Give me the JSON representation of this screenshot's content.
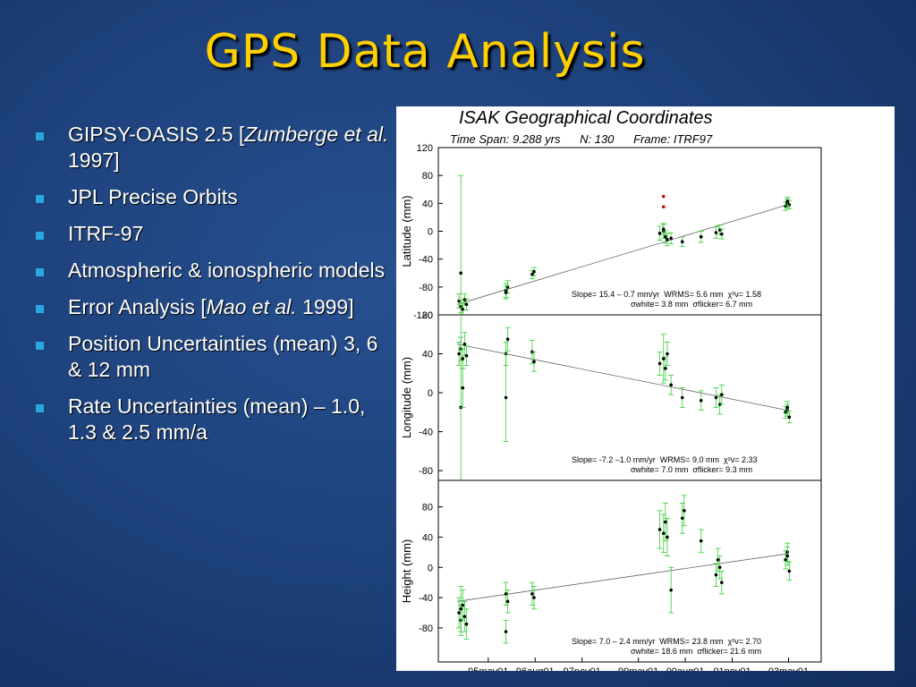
{
  "title": "GPS Data Analysis",
  "bullets": [
    [
      {
        "text": "GIPSY-OASIS 2.5 ["
      },
      {
        "text": "Zumberge et al.",
        "italic": true
      },
      {
        "text": " 1997]"
      }
    ],
    [
      {
        "text": "JPL Precise Orbits"
      }
    ],
    [
      {
        "text": "ITRF-97"
      }
    ],
    [
      {
        "text": "Atmospheric & ionospheric models"
      }
    ],
    [
      {
        "text": "Error Analysis ["
      },
      {
        "text": "Mao et al.",
        "italic": true
      },
      {
        "text": " 1999]"
      }
    ],
    [
      {
        "text": "Position Uncertainties (mean) 3, 6 & 12 mm"
      }
    ],
    [
      {
        "text": "Rate Uncertainties (mean) – 1.0, 1.3 & 2.5 mm/a"
      }
    ]
  ],
  "chart_data": [
    {
      "type": "scatter",
      "title": "ISAK Geographical Coordinates",
      "subtitle": "Time Span: 9.288 yrs      N: 130      Frame: ITRF97",
      "ylabel": "Latitude (mm)",
      "xlim": [
        1994.0,
        2004.2
      ],
      "ylim": [
        -120,
        120
      ],
      "yticks": [
        -120,
        -80,
        -40,
        0,
        40,
        80,
        120
      ],
      "x": [
        1994.55,
        1994.6,
        1994.65,
        1994.7,
        1994.75,
        1994.6,
        1995.8,
        1995.85,
        1995.8,
        1996.5,
        1996.55,
        1999.9,
        2000.0,
        2000.05,
        2000.1,
        2000.0,
        2000.2,
        2000.5,
        2001.0,
        2001.4,
        2001.5,
        2001.55,
        2003.25,
        2003.3,
        2003.35,
        2003.3
      ],
      "values": [
        -100,
        -108,
        -112,
        -98,
        -105,
        -60,
        -85,
        -80,
        -88,
        -62,
        -58,
        -3,
        0,
        -8,
        -12,
        3,
        -10,
        -15,
        -8,
        -2,
        2,
        -4,
        36,
        40,
        38,
        43
      ],
      "errors": [
        10,
        9,
        9,
        8,
        8,
        140,
        10,
        9,
        9,
        6,
        6,
        10,
        10,
        9,
        9,
        8,
        8,
        7,
        8,
        8,
        7,
        7,
        6,
        6,
        6,
        6
      ],
      "color": "#33cc33",
      "outliers": {
        "x": [
          2000.0,
          2000.0
        ],
        "values": [
          50,
          35
        ],
        "color": "#cc0000"
      },
      "trend": {
        "x": [
          1994.5,
          2003.3
        ],
        "values": [
          -105,
          38
        ]
      },
      "annotations": [
        "Slope= 15.4 – 0.7 mm/yr  WRMS= 5.6 mm  χ²ν= 1.58",
        "σwhite= 3.8 mm  σflicker= 6.7 mm"
      ]
    },
    {
      "type": "scatter",
      "ylabel": "Longitude (mm)",
      "xlim": [
        1994.0,
        2004.2
      ],
      "ylim": [
        -90,
        80
      ],
      "yticks": [
        -80,
        -40,
        0,
        40,
        80
      ],
      "x": [
        1994.55,
        1994.6,
        1994.65,
        1994.7,
        1994.75,
        1994.6,
        1994.65,
        1995.8,
        1995.85,
        1995.8,
        1996.5,
        1996.55,
        1999.9,
        2000.0,
        2000.05,
        2000.1,
        2000.2,
        2000.5,
        2001.0,
        2001.4,
        2001.5,
        2001.55,
        2003.25,
        2003.3,
        2003.35,
        2003.3
      ],
      "values": [
        40,
        45,
        35,
        50,
        38,
        -15,
        5,
        40,
        55,
        -5,
        42,
        32,
        30,
        35,
        25,
        40,
        8,
        -5,
        -8,
        -5,
        -12,
        -2,
        -20,
        -18,
        -25,
        -15
      ],
      "errors": [
        12,
        12,
        10,
        12,
        10,
        100,
        20,
        12,
        12,
        45,
        12,
        10,
        12,
        25,
        12,
        12,
        10,
        10,
        10,
        10,
        10,
        10,
        6,
        6,
        6,
        6
      ],
      "color": "#33cc33",
      "trend": {
        "x": [
          1994.5,
          2003.3
        ],
        "values": [
          50,
          -18
        ]
      },
      "annotations": [
        "Slope= -7.2 –1.0 mm/yr  WRMS= 9.0 mm  χ²ν= 2.33",
        "σwhite= 7.0 mm  σflicker= 9.3 mm"
      ]
    },
    {
      "type": "scatter",
      "ylabel": "Height (mm)",
      "xlim": [
        1994.0,
        2004.2
      ],
      "ylim": [
        -125,
        115
      ],
      "yticks": [
        -80,
        -40,
        0,
        40,
        80
      ],
      "xticks": [
        {
          "value": 1995.33,
          "label": "95may01"
        },
        {
          "value": 1996.58,
          "label": "96aug01"
        },
        {
          "value": 1997.83,
          "label": "97nov01"
        },
        {
          "value": 1999.33,
          "label": "99may01"
        },
        {
          "value": 2000.58,
          "label": "00aug01"
        },
        {
          "value": 2001.83,
          "label": "01nov01"
        },
        {
          "value": 2003.33,
          "label": "03may01"
        }
      ],
      "x": [
        1994.55,
        1994.6,
        1994.65,
        1994.7,
        1994.75,
        1994.6,
        1995.8,
        1995.85,
        1995.8,
        1996.5,
        1996.55,
        1999.9,
        2000.0,
        2000.05,
        2000.1,
        2000.2,
        2000.5,
        2000.55,
        2001.0,
        2001.4,
        2001.5,
        2001.55,
        2001.45,
        2003.25,
        2003.3,
        2003.35,
        2003.3
      ],
      "values": [
        -60,
        -70,
        -50,
        -65,
        -75,
        -55,
        -35,
        -45,
        -85,
        -35,
        -40,
        50,
        45,
        60,
        40,
        -30,
        65,
        75,
        35,
        -10,
        0,
        -20,
        10,
        10,
        20,
        -5,
        15
      ],
      "errors": [
        20,
        20,
        20,
        20,
        20,
        30,
        15,
        15,
        15,
        15,
        15,
        25,
        25,
        25,
        25,
        30,
        20,
        20,
        15,
        15,
        15,
        15,
        15,
        12,
        12,
        12,
        12
      ],
      "color": "#33cc33",
      "trend": {
        "x": [
          1994.5,
          2003.3
        ],
        "values": [
          -45,
          18
        ]
      },
      "annotations": [
        "Slope= 7.0 – 2.4 mm/yr  WRMS= 23.8 mm  χ²ν= 2.70",
        "σwhite= 18.6 mm  σflicker= 21.6 mm"
      ]
    }
  ]
}
